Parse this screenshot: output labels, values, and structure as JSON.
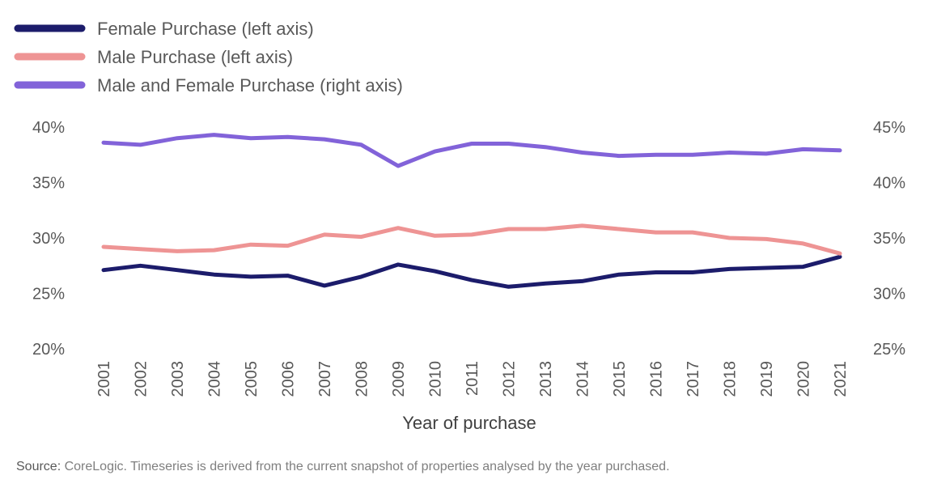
{
  "chart_data": {
    "type": "line",
    "x": [
      "2001",
      "2002",
      "2003",
      "2004",
      "2005",
      "2006",
      "2007",
      "2008",
      "2009",
      "2010",
      "2011",
      "2012",
      "2013",
      "2014",
      "2015",
      "2016",
      "2017",
      "2018",
      "2019",
      "2020",
      "2021"
    ],
    "xlabel": "Year of purchase",
    "left_axis": {
      "ticks": [
        "40%",
        "35%",
        "30%",
        "25%",
        "20%"
      ],
      "ylim": [
        20,
        40
      ]
    },
    "right_axis": {
      "ticks": [
        "45%",
        "40%",
        "35%",
        "30%",
        "25%"
      ],
      "ylim": [
        25,
        45
      ]
    },
    "series": [
      {
        "name": "Female Purchase (left axis)",
        "axis": "left",
        "color": "#1c1c6b",
        "values": [
          27.1,
          27.5,
          27.1,
          26.7,
          26.5,
          26.6,
          25.7,
          26.5,
          27.6,
          27.0,
          26.2,
          25.6,
          25.9,
          26.1,
          26.7,
          26.9,
          26.9,
          27.2,
          27.3,
          27.4,
          28.3
        ]
      },
      {
        "name": "Male Purchase (left axis)",
        "axis": "left",
        "color": "#ee9494",
        "values": [
          29.2,
          29.0,
          28.8,
          28.9,
          29.4,
          29.3,
          30.3,
          30.1,
          30.9,
          30.2,
          30.3,
          30.8,
          30.8,
          31.1,
          30.8,
          30.5,
          30.5,
          30.0,
          29.9,
          29.5,
          28.6
        ]
      },
      {
        "name": "Male and Female Purchase (right axis)",
        "axis": "right",
        "color": "#8263d9",
        "values": [
          43.6,
          43.4,
          44.0,
          44.3,
          44.0,
          44.1,
          43.9,
          43.4,
          41.5,
          42.8,
          43.5,
          43.5,
          43.2,
          42.7,
          42.4,
          42.5,
          42.5,
          42.7,
          42.6,
          43.0,
          42.9
        ]
      }
    ],
    "legend_position": "top-left",
    "grid": false
  },
  "source": {
    "label": "Source:",
    "text": " CoreLogic. Timeseries is derived from the current snapshot of properties analysed by the year purchased."
  }
}
